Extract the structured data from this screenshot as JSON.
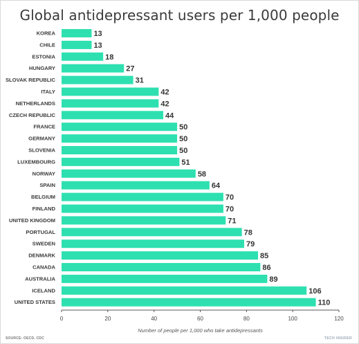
{
  "chart_data": {
    "type": "bar",
    "orientation": "horizontal",
    "title": "Global antidepressant users per 1,000 people",
    "xlabel": "Number of people per 1,000 who take antidepressants",
    "ylabel": "",
    "xlim": [
      0,
      120
    ],
    "xticks": [
      0,
      20,
      40,
      60,
      80,
      100,
      120
    ],
    "grid": false,
    "bar_color": "#2ee0b0",
    "categories": [
      "KOREA",
      "CHILE",
      "ESTONIA",
      "HUNGARY",
      "SLOVAK REPUBLIC",
      "ITALY",
      "NETHERLANDS",
      "CZECH REPUBLIC",
      "FRANCE",
      "GERMANY",
      "SLOVENIA",
      "LUXEMBOURG",
      "NORWAY",
      "SPAIN",
      "BELGIUM",
      "FINLAND",
      "UNITED KINGDOM",
      "PORTUGAL",
      "SWEDEN",
      "DENMARK",
      "CANADA",
      "AUSTRALIA",
      "ICELAND",
      "UNITED STATES"
    ],
    "values": [
      13,
      13,
      18,
      27,
      31,
      42,
      42,
      44,
      50,
      50,
      50,
      51,
      58,
      64,
      70,
      70,
      71,
      78,
      79,
      85,
      86,
      89,
      106,
      110
    ]
  },
  "footer": {
    "source": "SOURCE: OECD, CDC",
    "brand": "TECH INSIDER"
  }
}
